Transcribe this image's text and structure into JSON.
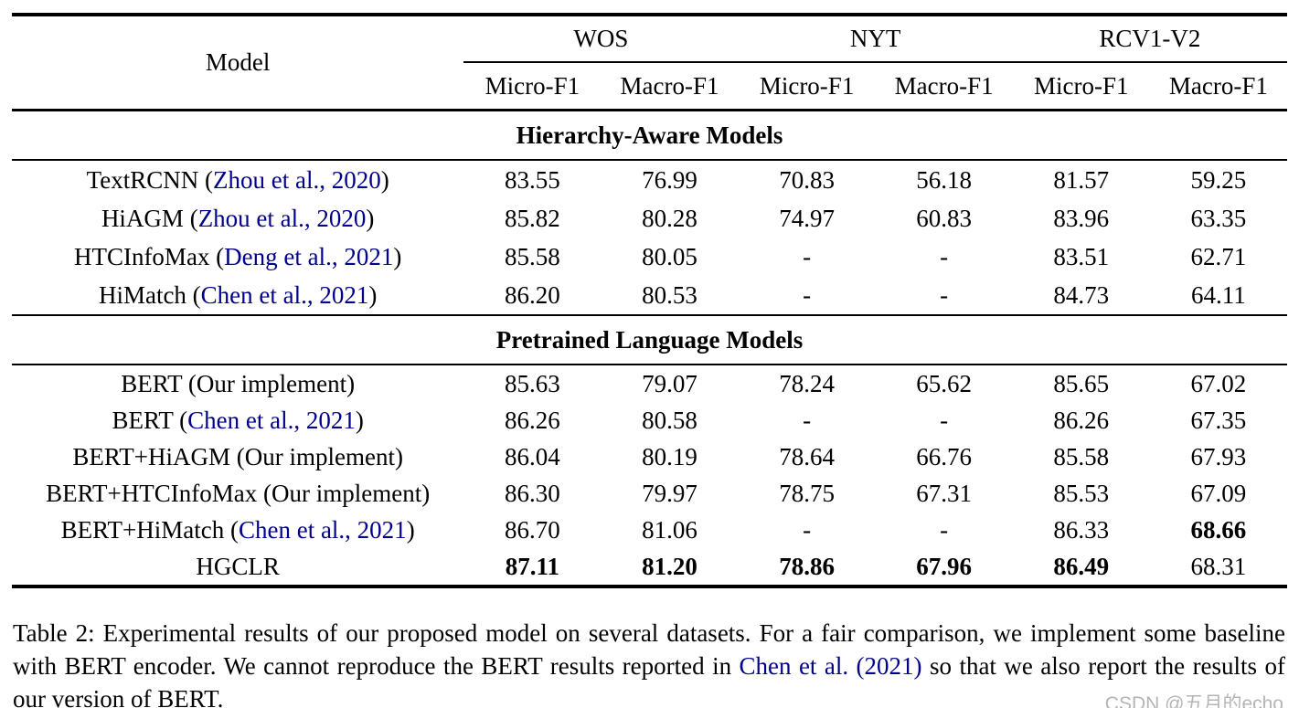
{
  "colors": {
    "link": "#00008B",
    "text": "#000000",
    "watermark": "#b5b5b5",
    "rule": "#000000"
  },
  "table": {
    "model_header": "Model",
    "groups": [
      {
        "label": "WOS"
      },
      {
        "label": "NYT"
      },
      {
        "label": "RCV1-V2"
      }
    ],
    "metric_headers": [
      "Micro-F1",
      "Macro-F1",
      "Micro-F1",
      "Macro-F1",
      "Micro-F1",
      "Macro-F1"
    ],
    "sections": [
      {
        "title": "Hierarchy-Aware Models",
        "rows": [
          {
            "model_prefix": "TextRCNN (",
            "model_link": "Zhou et al., 2020",
            "model_suffix": ")",
            "values": [
              "83.55",
              "76.99",
              "70.83",
              "56.18",
              "81.57",
              "59.25"
            ],
            "bold": [
              false,
              false,
              false,
              false,
              false,
              false
            ]
          },
          {
            "model_prefix": "HiAGM (",
            "model_link": "Zhou et al., 2020",
            "model_suffix": ")",
            "values": [
              "85.82",
              "80.28",
              "74.97",
              "60.83",
              "83.96",
              "63.35"
            ],
            "bold": [
              false,
              false,
              false,
              false,
              false,
              false
            ]
          },
          {
            "model_prefix": "HTCInfoMax (",
            "model_link": "Deng et al., 2021",
            "model_suffix": ")",
            "values": [
              "85.58",
              "80.05",
              "-",
              "-",
              "83.51",
              "62.71"
            ],
            "bold": [
              false,
              false,
              false,
              false,
              false,
              false
            ]
          },
          {
            "model_prefix": "HiMatch (",
            "model_link": "Chen et al., 2021",
            "model_suffix": ")",
            "values": [
              "86.20",
              "80.53",
              "-",
              "-",
              "84.73",
              "64.11"
            ],
            "bold": [
              false,
              false,
              false,
              false,
              false,
              false
            ]
          }
        ]
      },
      {
        "title": "Pretrained Language Models",
        "rows": [
          {
            "model_prefix": "BERT (Our implement)",
            "model_link": "",
            "model_suffix": "",
            "values": [
              "85.63",
              "79.07",
              "78.24",
              "65.62",
              "85.65",
              "67.02"
            ],
            "bold": [
              false,
              false,
              false,
              false,
              false,
              false
            ]
          },
          {
            "model_prefix": "BERT (",
            "model_link": "Chen et al., 2021",
            "model_suffix": ")",
            "values": [
              "86.26",
              "80.58",
              "-",
              "-",
              "86.26",
              "67.35"
            ],
            "bold": [
              false,
              false,
              false,
              false,
              false,
              false
            ]
          },
          {
            "model_prefix": "BERT+HiAGM (Our implement)",
            "model_link": "",
            "model_suffix": "",
            "values": [
              "86.04",
              "80.19",
              "78.64",
              "66.76",
              "85.58",
              "67.93"
            ],
            "bold": [
              false,
              false,
              false,
              false,
              false,
              false
            ]
          },
          {
            "model_prefix": "BERT+HTCInfoMax (Our implement)",
            "model_link": "",
            "model_suffix": "",
            "values": [
              "86.30",
              "79.97",
              "78.75",
              "67.31",
              "85.53",
              "67.09"
            ],
            "bold": [
              false,
              false,
              false,
              false,
              false,
              false
            ]
          },
          {
            "model_prefix": "BERT+HiMatch (",
            "model_link": "Chen et al., 2021",
            "model_suffix": ")",
            "values": [
              "86.70",
              "81.06",
              "-",
              "-",
              "86.33",
              "68.66"
            ],
            "bold": [
              false,
              false,
              false,
              false,
              false,
              true
            ]
          },
          {
            "model_prefix": "HGCLR",
            "model_link": "",
            "model_suffix": "",
            "values": [
              "87.11",
              "81.20",
              "78.86",
              "67.96",
              "86.49",
              "68.31"
            ],
            "bold": [
              true,
              true,
              true,
              true,
              true,
              false
            ]
          }
        ]
      }
    ]
  },
  "caption": {
    "part1": "Table 2:  Experimental results of our proposed model on several datasets.  For a fair comparison, we implement some baseline with BERT encoder.  We cannot reproduce the BERT results reported in ",
    "link": "Chen et al. (2021)",
    "part2": " so that we also report the results of our version of BERT."
  },
  "watermark": "CSDN @五月的echo"
}
